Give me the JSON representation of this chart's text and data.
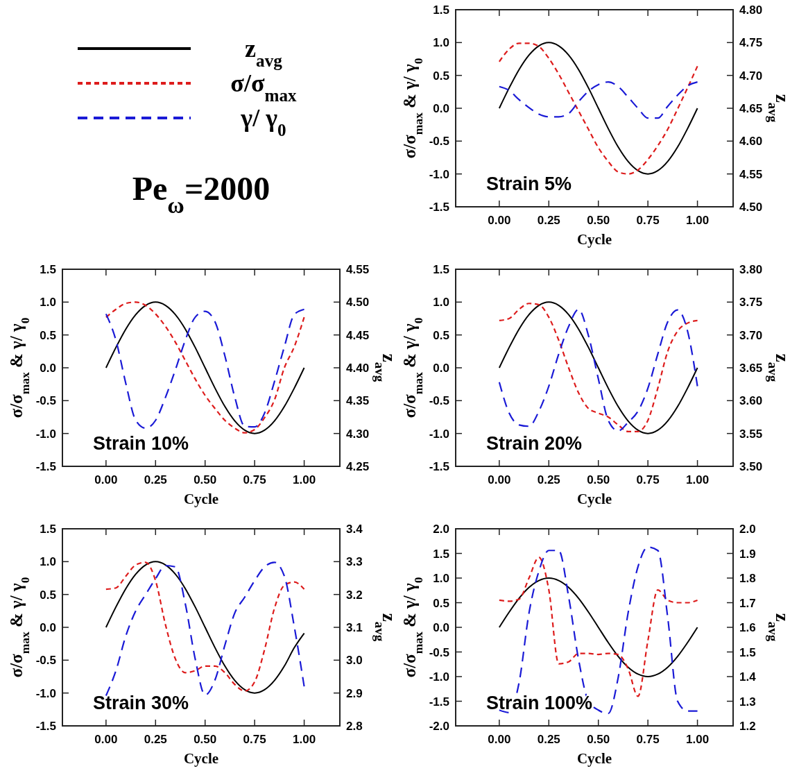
{
  "chart_data": [
    {
      "type": "line",
      "xlabel": "Cycle",
      "ylabel": "σ/σ$_{max}$ & γ/ γ$_{0}$",
      "y2label": "z$_{avg}$",
      "legend": "left",
      "annotations": [
        "Strain 5%",
        "Pe$_{ω}$=2000"
      ],
      "xlim": [
        -0.22,
        1.18
      ],
      "xticks": [
        {
          "value": 0,
          "label": "0.00"
        },
        {
          "value": 0.25,
          "label": "0.25"
        },
        {
          "value": 0.5,
          "label": "0.50"
        },
        {
          "value": 0.75,
          "label": "0.75"
        },
        {
          "value": 1,
          "label": "1.00"
        }
      ],
      "ylim": [
        -1.5,
        1.5
      ],
      "yticks": [
        -1.5,
        {
          "value": -1,
          "label": "-1.0"
        },
        -0.5,
        {
          "value": 0,
          "label": "0.0"
        },
        0.5,
        {
          "value": 1,
          "label": "1.0"
        },
        1.5
      ],
      "y2lim": [
        4.5,
        4.8
      ],
      "y2ticks": [
        {
          "value": 4.5,
          "label": "4.50"
        },
        {
          "value": 4.55,
          "label": "4.55"
        },
        {
          "value": 4.6,
          "label": "4.60"
        },
        {
          "value": 4.65,
          "label": "4.65"
        },
        {
          "value": 4.7,
          "label": "4.70"
        },
        {
          "value": 4.75,
          "label": "4.75"
        },
        {
          "value": 4.8,
          "label": "4.80"
        }
      ],
      "x": [
        0,
        0.05,
        0.1,
        0.15,
        0.2,
        0.25,
        0.3,
        0.35,
        0.4,
        0.45,
        0.5,
        0.55,
        0.6,
        0.65,
        0.7,
        0.75,
        0.8,
        0.85,
        0.9,
        0.95,
        1
      ],
      "series": [
        {
          "name": "z$_{avg}$",
          "color": "#000000",
          "axis": "y2",
          "line_style": "solid",
          "values": [
            4.65,
            4.681,
            4.709,
            4.731,
            4.745,
            4.75,
            4.745,
            4.731,
            4.709,
            4.681,
            4.65,
            4.619,
            4.591,
            4.569,
            4.555,
            4.55,
            4.555,
            4.569,
            4.591,
            4.619,
            4.65
          ]
        },
        {
          "name": "σ/σ$_{max}$",
          "color": "#dd1c1c",
          "line_style": "dashed",
          "values": [
            0.71,
            0.9,
            0.99,
            0.99,
            0.94,
            0.76,
            0.52,
            0.24,
            -0.04,
            -0.32,
            -0.6,
            -0.81,
            -0.97,
            -1.0,
            -0.94,
            -0.78,
            -0.57,
            -0.32,
            -0.01,
            0.31,
            0.64
          ]
        },
        {
          "name": "γ/ γ$_{0}$",
          "color": "#1a1ad6",
          "line_style": "dashed",
          "values": [
            0.33,
            0.27,
            0.13,
            0.01,
            -0.09,
            -0.13,
            -0.13,
            -0.08,
            0.1,
            0.26,
            0.36,
            0.4,
            0.33,
            0.17,
            0,
            -0.15,
            -0.15,
            0.03,
            0.2,
            0.34,
            0.4
          ]
        }
      ]
    },
    {
      "type": "line",
      "xlabel": "Cycle",
      "ylabel": "σ/σ$_{max}$ & γ/ γ$_{0}$",
      "y2label": "z$_{avg}$",
      "annotations": [
        "Strain 10%"
      ],
      "xlim": [
        -0.22,
        1.18
      ],
      "xticks": [
        {
          "value": 0,
          "label": "0.00"
        },
        {
          "value": 0.25,
          "label": "0.25"
        },
        {
          "value": 0.5,
          "label": "0.50"
        },
        {
          "value": 0.75,
          "label": "0.75"
        },
        {
          "value": 1,
          "label": "1.00"
        }
      ],
      "ylim": [
        -1.5,
        1.5
      ],
      "yticks": [
        -1.5,
        {
          "value": -1,
          "label": "-1.0"
        },
        -0.5,
        {
          "value": 0,
          "label": "0.0"
        },
        0.5,
        {
          "value": 1,
          "label": "1.0"
        },
        1.5
      ],
      "y2lim": [
        4.25,
        4.55
      ],
      "y2ticks": [
        {
          "value": 4.25,
          "label": "4.25"
        },
        {
          "value": 4.3,
          "label": "4.30"
        },
        {
          "value": 4.35,
          "label": "4.35"
        },
        {
          "value": 4.4,
          "label": "4.40"
        },
        {
          "value": 4.45,
          "label": "4.45"
        },
        {
          "value": 4.5,
          "label": "4.50"
        },
        {
          "value": 4.55,
          "label": "4.55"
        }
      ],
      "x": [
        0,
        0.05,
        0.1,
        0.15,
        0.2,
        0.25,
        0.3,
        0.35,
        0.4,
        0.45,
        0.5,
        0.55,
        0.6,
        0.65,
        0.7,
        0.75,
        0.8,
        0.85,
        0.9,
        0.95,
        1
      ],
      "series": [
        {
          "color": "#000000",
          "axis": "y2",
          "line_style": "solid",
          "values": [
            4.4,
            4.431,
            4.459,
            4.481,
            4.495,
            4.5,
            4.495,
            4.481,
            4.459,
            4.431,
            4.4,
            4.369,
            4.341,
            4.319,
            4.305,
            4.3,
            4.305,
            4.319,
            4.341,
            4.369,
            4.4
          ]
        },
        {
          "color": "#dd1c1c",
          "line_style": "dashed",
          "values": [
            0.77,
            0.89,
            0.98,
            1.0,
            0.95,
            0.82,
            0.63,
            0.39,
            0.11,
            -0.17,
            -0.42,
            -0.62,
            -0.8,
            -0.92,
            -0.99,
            -0.94,
            -0.76,
            -0.49,
            0,
            0.32,
            0.77
          ]
        },
        {
          "color": "#1a1ad6",
          "line_style": "dashed",
          "values": [
            0.82,
            0.42,
            -0.24,
            -0.8,
            -0.92,
            -0.8,
            -0.45,
            -0.03,
            0.42,
            0.77,
            0.86,
            0.7,
            0.18,
            -0.45,
            -0.89,
            -0.9,
            -0.69,
            -0.21,
            0.32,
            0.81,
            0.89
          ]
        }
      ]
    },
    {
      "type": "line",
      "xlabel": "Cycle",
      "ylabel": "σ/σ$_{max}$ & γ/ γ$_{0}$",
      "y2label": "z$_{avg}$",
      "annotations": [
        "Strain 20%"
      ],
      "xlim": [
        -0.22,
        1.18
      ],
      "xticks": [
        {
          "value": 0,
          "label": "0.00"
        },
        {
          "value": 0.25,
          "label": "0.25"
        },
        {
          "value": 0.5,
          "label": "0.50"
        },
        {
          "value": 0.75,
          "label": "0.75"
        },
        {
          "value": 1,
          "label": "1.00"
        }
      ],
      "ylim": [
        -1.5,
        1.5
      ],
      "yticks": [
        -1.5,
        {
          "value": -1,
          "label": "-1.0"
        },
        -0.5,
        {
          "value": 0,
          "label": "0.0"
        },
        0.5,
        {
          "value": 1,
          "label": "1.0"
        },
        1.5
      ],
      "y2lim": [
        3.5,
        3.8
      ],
      "y2ticks": [
        {
          "value": 3.5,
          "label": "3.50"
        },
        {
          "value": 3.55,
          "label": "3.55"
        },
        {
          "value": 3.6,
          "label": "3.60"
        },
        {
          "value": 3.65,
          "label": "3.65"
        },
        {
          "value": 3.7,
          "label": "3.70"
        },
        {
          "value": 3.75,
          "label": "3.75"
        },
        {
          "value": 3.8,
          "label": "3.80"
        }
      ],
      "x": [
        0,
        0.05,
        0.1,
        0.15,
        0.2,
        0.25,
        0.3,
        0.35,
        0.4,
        0.45,
        0.5,
        0.55,
        0.6,
        0.65,
        0.7,
        0.75,
        0.8,
        0.85,
        0.9,
        0.95,
        1
      ],
      "series": [
        {
          "color": "#000000",
          "axis": "y2",
          "line_style": "solid",
          "values": [
            3.65,
            3.681,
            3.709,
            3.731,
            3.745,
            3.75,
            3.745,
            3.731,
            3.709,
            3.681,
            3.65,
            3.619,
            3.591,
            3.569,
            3.555,
            3.55,
            3.555,
            3.569,
            3.591,
            3.619,
            3.65
          ]
        },
        {
          "color": "#dd1c1c",
          "line_style": "dashed",
          "values": [
            0.72,
            0.75,
            0.89,
            0.98,
            0.96,
            0.77,
            0.42,
            0,
            -0.38,
            -0.62,
            -0.69,
            -0.75,
            -0.87,
            -0.97,
            -0.97,
            -0.8,
            -0.31,
            0.25,
            0.56,
            0.68,
            0.72
          ]
        },
        {
          "color": "#1a1ad6",
          "line_style": "dashed",
          "values": [
            -0.22,
            -0.69,
            -0.87,
            -0.89,
            -0.66,
            -0.28,
            0.21,
            0.63,
            0.89,
            0.49,
            -0.17,
            -0.8,
            -0.96,
            -0.83,
            -0.66,
            -0.31,
            0.21,
            0.7,
            0.88,
            0.56,
            -0.28
          ]
        }
      ]
    },
    {
      "type": "line",
      "xlabel": "Cycle",
      "ylabel": "σ/σ$_{max}$ & γ/ γ$_{0}$",
      "y2label": "z$_{avg}$",
      "annotations": [
        "Strain 30%"
      ],
      "xlim": [
        -0.22,
        1.18
      ],
      "xticks": [
        {
          "value": 0,
          "label": "0.00"
        },
        {
          "value": 0.25,
          "label": "0.25"
        },
        {
          "value": 0.5,
          "label": "0.50"
        },
        {
          "value": 0.75,
          "label": "0.75"
        },
        {
          "value": 1,
          "label": "1.00"
        }
      ],
      "ylim": [
        -1.5,
        1.5
      ],
      "yticks": [
        -1.5,
        {
          "value": -1,
          "label": "-1.0"
        },
        -0.5,
        {
          "value": 0,
          "label": "0.0"
        },
        0.5,
        {
          "value": 1,
          "label": "1.0"
        },
        1.5
      ],
      "y2lim": [
        2.8,
        3.4
      ],
      "y2ticks": [
        2.8,
        2.9,
        {
          "value": 3,
          "label": "3.0"
        },
        3.1,
        3.2,
        3.3,
        3.4
      ],
      "x": [
        0,
        0.05,
        0.1,
        0.15,
        0.2,
        0.25,
        0.3,
        0.35,
        0.4,
        0.45,
        0.5,
        0.55,
        0.6,
        0.65,
        0.7,
        0.75,
        0.8,
        0.85,
        0.9,
        0.95,
        1
      ],
      "series": [
        {
          "color": "#000000",
          "axis": "y2",
          "line_style": "solid",
          "values": [
            3.1,
            3.162,
            3.218,
            3.262,
            3.29,
            3.3,
            3.29,
            3.262,
            3.218,
            3.162,
            3.1,
            3.038,
            2.982,
            2.938,
            2.91,
            2.9,
            2.91,
            2.938,
            2.982,
            3.038,
            3.082
          ]
        },
        {
          "color": "#dd1c1c",
          "line_style": "dashed",
          "values": [
            0.58,
            0.6,
            0.78,
            0.95,
            0.99,
            0.71,
            0.04,
            -0.48,
            -0.69,
            -0.66,
            -0.59,
            -0.59,
            -0.69,
            -0.87,
            -0.97,
            -0.83,
            -0.34,
            0.29,
            0.64,
            0.69,
            0.58
          ]
        },
        {
          "color": "#1a1ad6",
          "line_style": "dashed",
          "values": [
            -1.04,
            -0.66,
            -0.13,
            0.25,
            0.5,
            0.74,
            0.94,
            0.92,
            0.36,
            -0.48,
            -1.03,
            -0.8,
            -0.27,
            0.22,
            0.46,
            0.71,
            0.92,
            0.99,
            0.78,
            0.01,
            -0.9
          ]
        }
      ]
    },
    {
      "type": "line",
      "xlabel": "Cycle",
      "ylabel": "σ/σ$_{max}$ & γ/ γ$_{0}$",
      "y2label": "z$_{avg}$",
      "annotations": [
        "Strain 100%"
      ],
      "xlim": [
        -0.22,
        1.18
      ],
      "xticks": [
        {
          "value": 0,
          "label": "0.00"
        },
        {
          "value": 0.25,
          "label": "0.25"
        },
        {
          "value": 0.5,
          "label": "0.50"
        },
        {
          "value": 0.75,
          "label": "0.75"
        },
        {
          "value": 1,
          "label": "1.00"
        }
      ],
      "ylim": [
        -2,
        2
      ],
      "yticks": [
        {
          "value": -2,
          "label": "-2.0"
        },
        -1.5,
        {
          "value": -1,
          "label": "-1.0"
        },
        -0.5,
        {
          "value": 0,
          "label": "0.0"
        },
        0.5,
        {
          "value": 1,
          "label": "1.0"
        },
        1.5,
        {
          "value": 2,
          "label": "2.0"
        }
      ],
      "y2lim": [
        1.2,
        2.0
      ],
      "y2ticks": [
        1.2,
        1.3,
        1.4,
        1.5,
        1.6,
        1.7,
        1.8,
        1.9,
        {
          "value": 2,
          "label": "2.0"
        }
      ],
      "x": [
        0,
        0.05,
        0.1,
        0.15,
        0.2,
        0.25,
        0.3,
        0.35,
        0.4,
        0.45,
        0.5,
        0.55,
        0.6,
        0.65,
        0.7,
        0.75,
        0.8,
        0.85,
        0.9,
        0.95,
        1
      ],
      "series": [
        {
          "color": "#000000",
          "axis": "y2",
          "line_style": "solid",
          "values": [
            1.6,
            1.662,
            1.718,
            1.762,
            1.79,
            1.8,
            1.79,
            1.762,
            1.718,
            1.662,
            1.6,
            1.538,
            1.482,
            1.438,
            1.41,
            1.4,
            1.41,
            1.438,
            1.482,
            1.538,
            1.6
          ]
        },
        {
          "color": "#dd1c1c",
          "line_style": "dashed",
          "values": [
            0.55,
            0.53,
            0.57,
            1.0,
            1.42,
            0.76,
            -0.74,
            -0.7,
            -0.53,
            -0.53,
            -0.55,
            -0.53,
            -0.55,
            -0.84,
            -1.4,
            -0.27,
            0.76,
            0.55,
            0.5,
            0.5,
            0.55
          ]
        },
        {
          "color": "#1a1ad6",
          "line_style": "dashed",
          "values": [
            -1.68,
            -1.73,
            -1.12,
            0.29,
            1.14,
            1.56,
            1.56,
            0.62,
            -0.65,
            -1.5,
            -1.68,
            -1.75,
            -1.02,
            0.29,
            1.23,
            1.63,
            1.56,
            0.2,
            -1.5,
            -1.7,
            -1.7
          ]
        }
      ]
    }
  ]
}
